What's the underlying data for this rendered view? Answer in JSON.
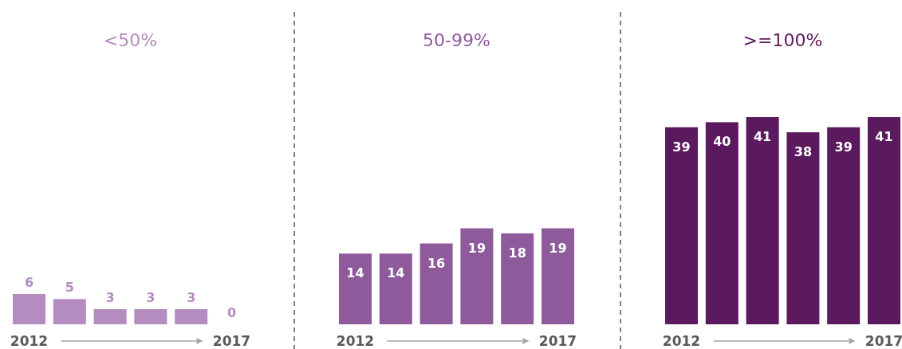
{
  "chart_data": [
    {
      "type": "bar",
      "title": "<50%",
      "categories": [
        "2012",
        null,
        null,
        null,
        null,
        "2017"
      ],
      "values": [
        6,
        5,
        3,
        3,
        3,
        0
      ],
      "color": "#b48cc0",
      "data_labels": true
    },
    {
      "type": "bar",
      "title": "50-99%",
      "categories": [
        "2012",
        null,
        null,
        null,
        null,
        "2017"
      ],
      "values": [
        14,
        14,
        16,
        19,
        18,
        19
      ],
      "color": "#8e5a9c",
      "data_labels": true
    },
    {
      "type": "bar",
      "title": ">=100%",
      "categories": [
        "2012",
        null,
        null,
        null,
        null,
        "2017"
      ],
      "values": [
        39,
        40,
        41,
        38,
        39,
        41
      ],
      "color": "#5b1a5e",
      "data_labels": true
    }
  ]
}
